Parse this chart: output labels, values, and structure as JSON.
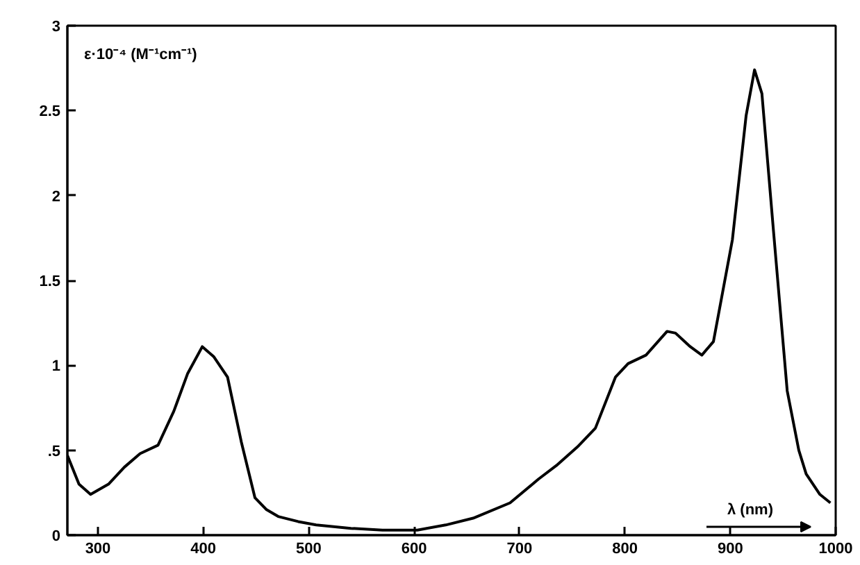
{
  "chart_data": {
    "type": "line",
    "xlabel": "λ (nm)",
    "ylabel": "ε·10⁻⁴ (M⁻¹cm⁻¹)",
    "x": [
      271,
      282,
      293,
      310,
      325,
      340,
      357,
      372,
      385,
      399,
      410,
      423,
      436,
      449,
      460,
      471,
      490,
      507,
      540,
      570,
      603,
      630,
      656,
      691,
      718,
      735,
      755,
      772,
      791,
      803,
      820,
      840,
      848,
      862,
      873,
      884,
      902,
      915,
      923,
      930,
      941,
      954,
      965,
      972,
      985,
      995
    ],
    "series": [
      {
        "color": "#000000",
        "values": [
          0.47,
          0.3,
          0.24,
          0.3,
          0.4,
          0.48,
          0.53,
          0.73,
          0.95,
          1.11,
          1.05,
          0.93,
          0.55,
          0.22,
          0.15,
          0.11,
          0.08,
          0.06,
          0.04,
          0.03,
          0.03,
          0.06,
          0.1,
          0.19,
          0.33,
          0.41,
          0.52,
          0.63,
          0.93,
          1.01,
          1.06,
          1.2,
          1.19,
          1.11,
          1.06,
          1.14,
          1.74,
          2.47,
          2.74,
          2.6,
          1.79,
          0.85,
          0.5,
          0.36,
          0.24,
          0.19
        ]
      }
    ],
    "xlim": [
      271,
      1000
    ],
    "ylim": [
      0,
      3
    ],
    "xticks": [
      300,
      400,
      500,
      600,
      700,
      800,
      900,
      1000
    ],
    "yticks": [
      0,
      {
        "value": 0.5,
        "label": ".5"
      },
      1,
      1.5,
      2,
      2.5,
      3
    ],
    "grid": false,
    "marker": "none",
    "line_style": "solid"
  }
}
